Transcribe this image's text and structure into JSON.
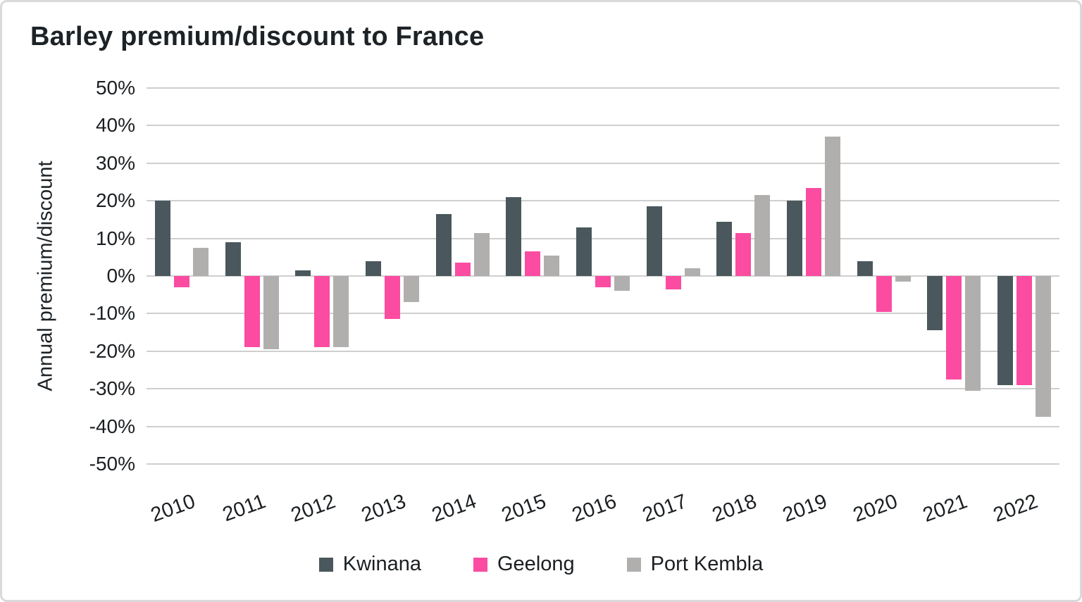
{
  "chart_data": {
    "type": "bar",
    "title": "Barley premium/discount to France",
    "xlabel": "",
    "ylabel": "Annual premium/discount",
    "ylim": [
      -50,
      50
    ],
    "ytick_step": 10,
    "ytick_labels": [
      "50%",
      "40%",
      "30%",
      "20%",
      "10%",
      "0%",
      "-10%",
      "-20%",
      "-30%",
      "-40%",
      "-50%"
    ],
    "grid": true,
    "legend_position": "bottom",
    "categories": [
      "2010",
      "2011",
      "2012",
      "2013",
      "2014",
      "2015",
      "2016",
      "2017",
      "2018",
      "2019",
      "2020",
      "2021",
      "2022"
    ],
    "series": [
      {
        "name": "Kwinana",
        "color": "#4a585d",
        "values": [
          20,
          9,
          1.5,
          4,
          16.5,
          21,
          13,
          18.5,
          14.5,
          20,
          4,
          -14.5,
          -29
        ]
      },
      {
        "name": "Geelong",
        "color": "#fb4ca1",
        "values": [
          -3,
          -19,
          -19,
          -11.5,
          3.5,
          6.5,
          -3,
          -3.5,
          11.5,
          23.5,
          -9.5,
          -27.5,
          -29
        ]
      },
      {
        "name": "Port Kembla",
        "color": "#b0afae",
        "values": [
          7.5,
          -19.5,
          -19,
          -7,
          11.5,
          5.5,
          -4,
          2,
          21.5,
          37,
          -1.5,
          -30.5,
          -37.5
        ]
      }
    ]
  }
}
